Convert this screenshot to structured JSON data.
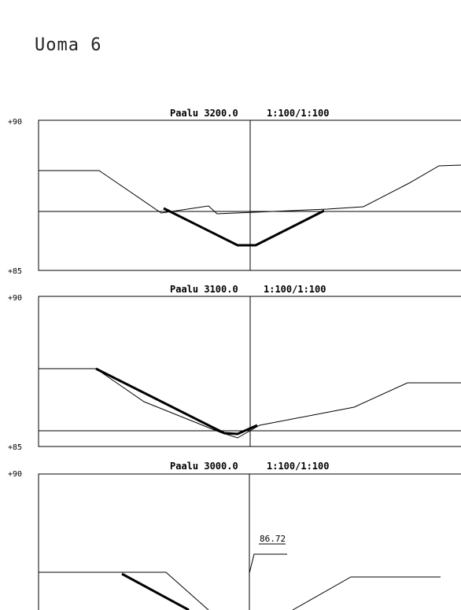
{
  "page_title": "Uoma 6",
  "profiles": [
    {
      "label": "Paalu 3200.0",
      "scale": "1:100/1:100",
      "elev_top": "+90",
      "elev_bottom": "+85",
      "ground_line": [
        [
          49,
          217
        ],
        [
          126,
          217
        ],
        [
          205,
          271
        ],
        [
          265,
          262
        ],
        [
          276,
          272
        ],
        [
          416,
          266
        ],
        [
          462,
          263
        ],
        [
          520,
          233
        ],
        [
          558,
          211
        ],
        [
          586,
          210
        ]
      ],
      "ditch_line": [
        [
          208,
          265
        ],
        [
          302,
          312
        ],
        [
          325,
          312
        ],
        [
          412,
          268
        ]
      ],
      "horizontal_line_y": 269,
      "annotation": null
    },
    {
      "label": "Paalu 3100.0",
      "scale": "1:100/1:100",
      "elev_top": "+90",
      "elev_bottom": "+85",
      "ground_line": [
        [
          49,
          469
        ],
        [
          122,
          469
        ],
        [
          183,
          511
        ],
        [
          280,
          550
        ],
        [
          302,
          557
        ],
        [
          330,
          541
        ],
        [
          450,
          518
        ],
        [
          518,
          487
        ],
        [
          586,
          487
        ]
      ],
      "ditch_line": [
        [
          122,
          469
        ],
        [
          285,
          551
        ],
        [
          302,
          552
        ],
        [
          327,
          541
        ]
      ],
      "horizontal_line_y": 548,
      "annotation": null
    },
    {
      "label": "Paalu 3000.0",
      "scale": "1:100/1:100",
      "elev_top": "+90",
      "elev_bottom": "",
      "ground_line": [
        [
          49,
          728
        ],
        [
          211,
          728
        ],
        [
          265,
          776
        ]
      ],
      "ground_line_right": [
        [
          372,
          776
        ],
        [
          446,
          734
        ],
        [
          560,
          734
        ]
      ],
      "ditch_line": [
        [
          155,
          730
        ],
        [
          240,
          776
        ]
      ],
      "horizontal_line_y": null,
      "annotation": "86.72"
    }
  ]
}
